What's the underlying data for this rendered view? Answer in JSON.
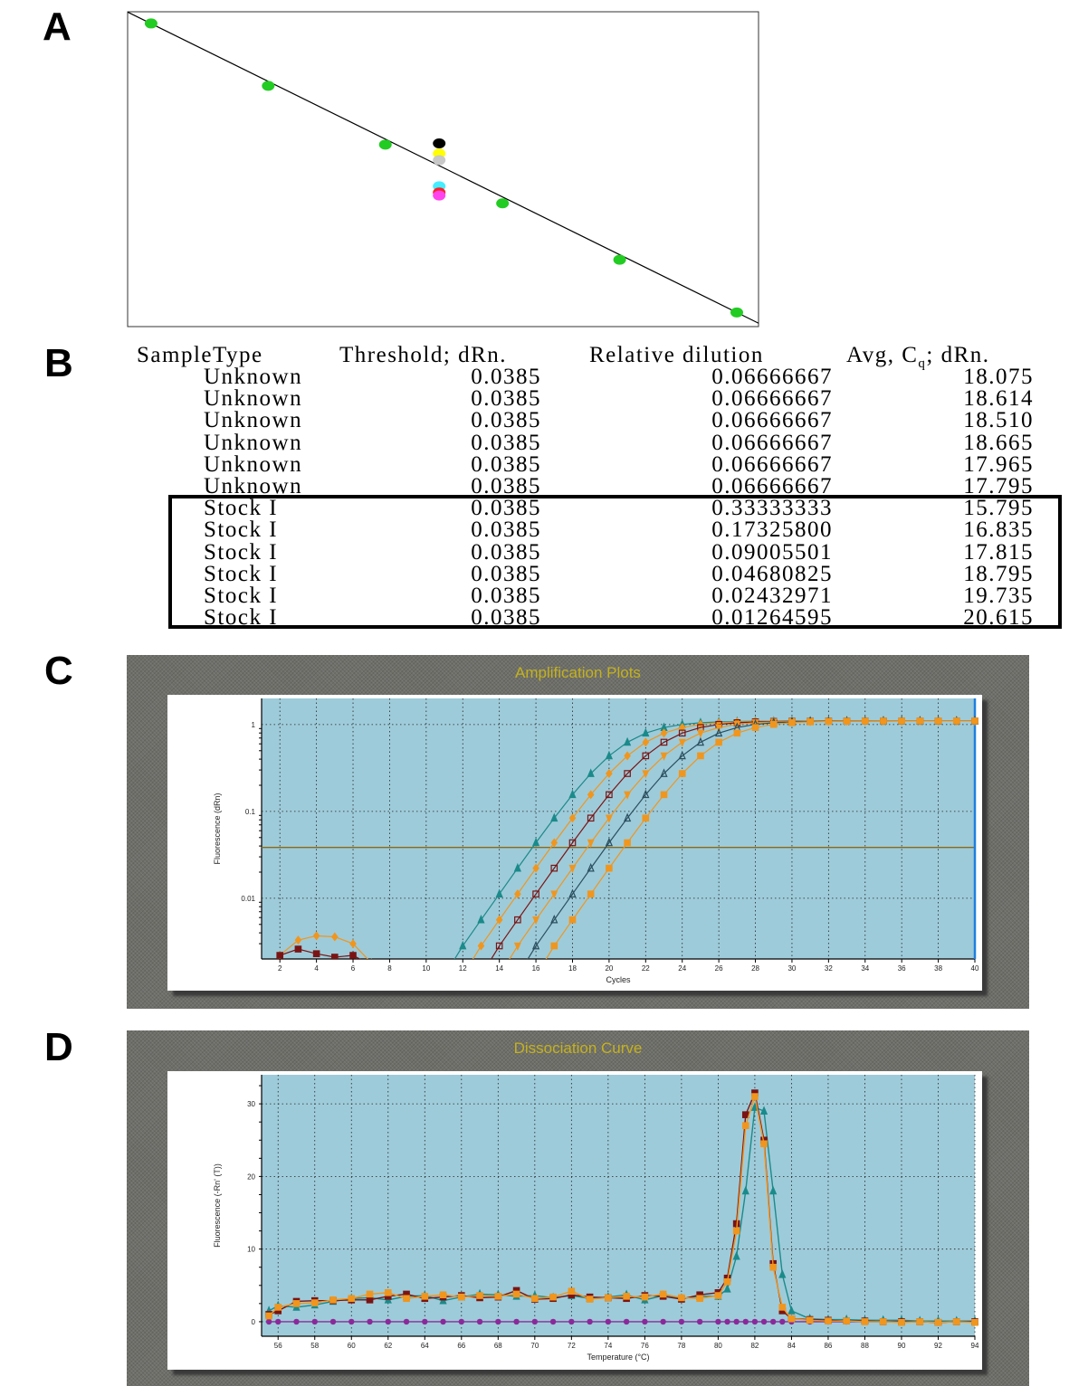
{
  "panel_labels": [
    "A",
    "B",
    "C",
    "D"
  ],
  "table": {
    "headers": [
      "SampleType",
      "Threshold; dRn.",
      "Relative dilution",
      "Avg, C",
      "q",
      "; dRn."
    ],
    "rows": [
      [
        "Unknown",
        "0.0385",
        "0.06666667",
        "18.075"
      ],
      [
        "Unknown",
        "0.0385",
        "0.06666667",
        "18.614"
      ],
      [
        "Unknown",
        "0.0385",
        "0.06666667",
        "18.510"
      ],
      [
        "Unknown",
        "0.0385",
        "0.06666667",
        "18.665"
      ],
      [
        "Unknown",
        "0.0385",
        "0.06666667",
        "17.965"
      ],
      [
        "Unknown",
        "0.0385",
        "0.06666667",
        "17.795"
      ],
      [
        "Stock I",
        "0.0385",
        "0.33333333",
        "15.795"
      ],
      [
        "Stock I",
        "0.0385",
        "0.17325800",
        "16.835"
      ],
      [
        "Stock I",
        "0.0385",
        "0.09005501",
        "17.815"
      ],
      [
        "Stock I",
        "0.0385",
        "0.04680825",
        "18.795"
      ],
      [
        "Stock I",
        "0.0385",
        "0.02432971",
        "19.735"
      ],
      [
        "Stock I",
        "0.0385",
        "0.01264595",
        "20.615"
      ]
    ]
  },
  "chart_data": [
    {
      "panel": "A",
      "type": "scatter",
      "xscale": "log",
      "xlim": [
        0.38,
        0.0112
      ],
      "ylim": [
        15.6,
        20.85
      ],
      "y_inverted": true,
      "grid": false,
      "fit_line": {
        "slope": -3.39,
        "intercept": 14.18,
        "color": "#000000"
      },
      "standards": {
        "color": "#22cc22",
        "x": [
          0.33333333,
          0.173258,
          0.09005501,
          0.04680825,
          0.02432971,
          0.01264595
        ],
        "y": [
          15.795,
          16.835,
          17.815,
          18.795,
          19.735,
          20.615
        ]
      },
      "unknowns": {
        "x": [
          0.06666667,
          0.06666667,
          0.06666667,
          0.06666667,
          0.06666667,
          0.06666667
        ],
        "y": [
          17.795,
          17.965,
          18.075,
          18.51,
          18.614,
          18.665
        ],
        "colors": [
          "#000000",
          "#ffff00",
          "#c8c8c8",
          "#44eeff",
          "#ff2020",
          "#ff44ee"
        ]
      }
    },
    {
      "panel": "C",
      "type": "line",
      "title": "Amplification Plots",
      "xlabel": "Cycles",
      "ylabel": "Fluorescence (dRn)",
      "xlim": [
        1,
        40
      ],
      "ylim": [
        0.002,
        2
      ],
      "yscale": "log",
      "xticks": [
        2,
        4,
        6,
        8,
        10,
        12,
        14,
        16,
        18,
        20,
        22,
        24,
        26,
        28,
        30,
        32,
        34,
        36,
        38,
        40
      ],
      "yticks": [
        0.01,
        0.1,
        1
      ],
      "ytick_labels": [
        "0.01",
        "0.1",
        "1"
      ],
      "grid": true,
      "threshold": 0.0385,
      "threshold_color": "#8a6a1a",
      "end_marker_color": "#1e7fe0",
      "plot_bg": "#9ecbd9",
      "series": [
        {
          "color": "#1b8a8a",
          "marker": "triangle",
          "start_cycle": 12,
          "values": [
            0.00283,
            0.00565,
            0.0112,
            0.0222,
            0.0436,
            0.0838,
            0.156,
            0.273,
            0.437,
            0.626,
            0.798,
            0.925,
            1.005,
            1.05,
            1.074,
            1.087,
            1.093,
            1.096,
            1.098,
            1.099,
            1.1,
            1.1,
            1.1,
            1.1,
            1.1,
            1.1,
            1.1,
            1.1,
            1.1
          ]
        },
        {
          "color": "#f0961e",
          "marker": "diamond",
          "start_cycle": 13,
          "values": [
            0.00283,
            0.00565,
            0.0112,
            0.0222,
            0.0436,
            0.0838,
            0.156,
            0.273,
            0.437,
            0.626,
            0.798,
            0.925,
            1.005,
            1.05,
            1.074,
            1.087,
            1.093,
            1.096,
            1.098,
            1.099,
            1.1,
            1.1,
            1.1,
            1.1,
            1.1,
            1.1,
            1.1,
            1.1
          ]
        },
        {
          "color": "#7a1414",
          "marker": "open-square",
          "start_cycle": 14,
          "values": [
            0.00283,
            0.00565,
            0.0112,
            0.0222,
            0.0436,
            0.0838,
            0.156,
            0.273,
            0.437,
            0.626,
            0.798,
            0.925,
            1.005,
            1.05,
            1.074,
            1.087,
            1.093,
            1.096,
            1.098,
            1.099,
            1.1,
            1.1,
            1.1,
            1.1,
            1.1,
            1.1,
            1.1
          ]
        },
        {
          "color": "#f0961e",
          "marker": "down-triangle",
          "start_cycle": 15,
          "values": [
            0.00283,
            0.00565,
            0.0112,
            0.0222,
            0.0436,
            0.0838,
            0.156,
            0.273,
            0.437,
            0.626,
            0.798,
            0.925,
            1.005,
            1.05,
            1.074,
            1.087,
            1.093,
            1.096,
            1.098,
            1.099,
            1.1,
            1.1,
            1.1,
            1.1,
            1.1,
            1.1
          ]
        },
        {
          "color": "#2a4f5f",
          "marker": "open-triangle",
          "start_cycle": 16,
          "values": [
            0.00283,
            0.00565,
            0.0112,
            0.0222,
            0.0436,
            0.0838,
            0.156,
            0.273,
            0.437,
            0.626,
            0.798,
            0.925,
            1.005,
            1.05,
            1.074,
            1.087,
            1.093,
            1.096,
            1.098,
            1.099,
            1.1,
            1.1,
            1.1,
            1.1,
            1.1
          ]
        },
        {
          "color": "#f0961e",
          "marker": "square",
          "start_cycle": 17,
          "values": [
            0.00283,
            0.00565,
            0.0112,
            0.0222,
            0.0436,
            0.0838,
            0.156,
            0.273,
            0.437,
            0.626,
            0.798,
            0.925,
            1.005,
            1.05,
            1.074,
            1.087,
            1.093,
            1.096,
            1.098,
            1.099,
            1.1,
            1.1,
            1.1,
            1.1
          ]
        },
        {
          "color": "#f0961e",
          "marker": "diamond",
          "start_cycle": 2,
          "values": [
            0.0022,
            0.0033,
            0.0037,
            0.0036,
            0.003,
            0.0018
          ]
        },
        {
          "color": "#7a1414",
          "marker": "square",
          "start_cycle": 2,
          "values": [
            0.0022,
            0.0026,
            0.0023,
            0.0021,
            0.0022,
            0.0017
          ]
        }
      ]
    },
    {
      "panel": "D",
      "type": "line",
      "title": "Dissociation Curve",
      "xlabel": "Temperature (°C)",
      "ylabel": "Fluorescence (-Rn' (T))",
      "xlim": [
        55.1,
        94
      ],
      "ylim": [
        -2,
        34
      ],
      "xticks": [
        56,
        58,
        60,
        62,
        64,
        66,
        68,
        70,
        72,
        74,
        76,
        78,
        80,
        82,
        84,
        86,
        88,
        90,
        92,
        94
      ],
      "yticks": [
        0,
        10,
        20,
        30
      ],
      "ytick_labels": [
        "0",
        "10",
        "20",
        "30"
      ],
      "grid": true,
      "plot_bg": "#9ecbd9",
      "x": [
        55.5,
        56,
        57,
        58,
        59,
        60,
        61,
        62,
        63,
        64,
        65,
        66,
        67,
        68,
        69,
        70,
        71,
        72,
        73,
        74,
        75,
        76,
        77,
        78,
        79,
        80,
        80.5,
        81,
        81.5,
        82,
        82.5,
        83,
        83.5,
        84,
        85,
        86,
        87,
        88,
        89,
        90,
        91,
        92,
        93,
        94
      ],
      "series": [
        {
          "color": "#1b8a8a",
          "marker": "triangle",
          "values": [
            1.5,
            2.2,
            2,
            2.3,
            2.8,
            3.2,
            3.3,
            3,
            3.5,
            3.6,
            2.9,
            3.4,
            3.8,
            3.7,
            3.5,
            3.6,
            3.3,
            3.6,
            3.2,
            3.4,
            3.7,
            3,
            3.6,
            3.2,
            3.5,
            3.5,
            4.5,
            9,
            18,
            29.5,
            29,
            18,
            6.5,
            1.5,
            0.4,
            0.3,
            0.3,
            0.2,
            0.2,
            0.2,
            0.1,
            0.1,
            0.1,
            0.1
          ]
        },
        {
          "color": "#7a1414",
          "marker": "square",
          "values": [
            1,
            1.5,
            2.8,
            2.9,
            2.9,
            3,
            3,
            3.5,
            3.8,
            3.2,
            3.4,
            3.6,
            3.3,
            3.4,
            4.3,
            3.1,
            3.2,
            3.7,
            3.4,
            3.3,
            3.2,
            3.6,
            3.5,
            3.1,
            3.7,
            4,
            6,
            13.5,
            28.5,
            31.5,
            25,
            8,
            1.5,
            0.4,
            0.3,
            0.2,
            0.1,
            0.1,
            0,
            0,
            0,
            -0.1,
            0,
            0
          ]
        },
        {
          "color": "#f0961e",
          "marker": "square",
          "values": [
            0.8,
            2,
            2.5,
            2.6,
            3,
            3.2,
            3.8,
            4,
            3.2,
            3.5,
            3.7,
            3.4,
            3.6,
            3.5,
            3.8,
            3.2,
            3.4,
            4.2,
            3.1,
            3.3,
            3.5,
            3.4,
            3.8,
            3.3,
            3.2,
            3.6,
            5.5,
            12.5,
            27,
            31,
            24.5,
            7.5,
            2,
            0.4,
            0.2,
            0.1,
            0.1,
            0,
            0,
            -0.1,
            0,
            -0.1,
            0,
            -0.1
          ]
        },
        {
          "color": "#8a2a9a",
          "marker": "circle",
          "values": [
            0,
            0,
            0,
            0,
            0,
            0,
            0,
            0,
            0,
            0,
            0,
            0,
            0,
            0,
            0,
            0,
            0,
            0,
            0,
            0,
            0,
            0,
            0,
            0,
            0,
            0,
            0,
            0,
            0,
            0,
            0,
            0,
            0,
            0,
            0,
            0,
            0,
            0,
            0,
            0,
            0,
            0,
            0,
            0
          ]
        }
      ]
    }
  ]
}
